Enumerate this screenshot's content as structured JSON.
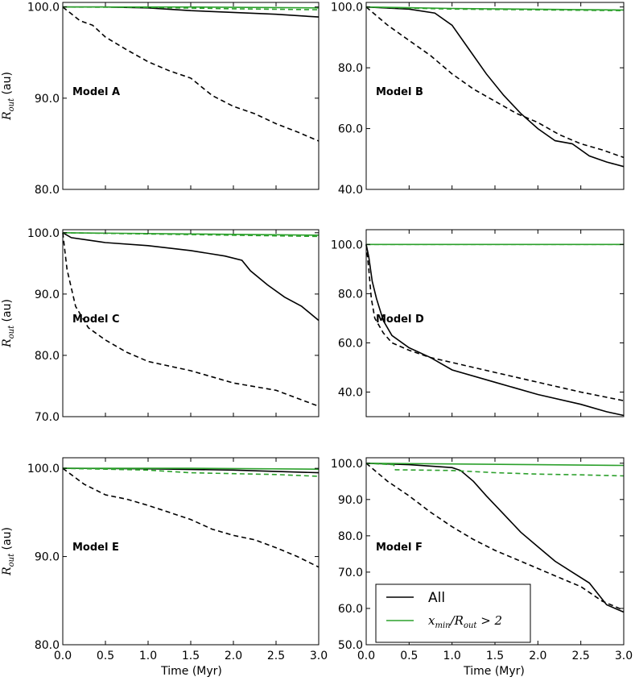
{
  "figure": {
    "xlabel": "Time (Myr)",
    "ylabel_main": "R",
    "ylabel_sub": "out",
    "ylabel_unit": " (au)"
  },
  "legend": {
    "entries": [
      {
        "label": "All",
        "color": "#000000"
      },
      {
        "label_main": "x",
        "label_sub1": "min",
        "label_mid": "/R",
        "label_sub2": "out",
        "label_tail": " > 2",
        "color": "#2ca02c"
      }
    ],
    "placement": "lower-left of Model F panel"
  },
  "colors": {
    "all": "#000000",
    "xmin": "#2ca02c"
  },
  "chart_data": [
    {
      "type": "line",
      "title": "Model A",
      "xlim": [
        0,
        3
      ],
      "ylim": [
        80,
        100.5
      ],
      "xticks": [
        "0.0",
        "0.5",
        "1.0",
        "1.5",
        "2.0",
        "2.5",
        "3.0"
      ],
      "yticks": [
        {
          "v": 80,
          "t": "80.0"
        },
        {
          "v": 90,
          "t": "90.0"
        },
        {
          "v": 100,
          "t": "100.0"
        }
      ],
      "series": [
        {
          "name": "All (solid)",
          "color": "#000000",
          "dash": false,
          "x": [
            0,
            0.5,
            1.0,
            1.5,
            2.0,
            2.5,
            3.0
          ],
          "y": [
            100,
            100,
            99.9,
            99.6,
            99.4,
            99.2,
            98.9
          ]
        },
        {
          "name": "All (dashed)",
          "color": "#000000",
          "dash": true,
          "x": [
            0,
            0.2,
            0.35,
            0.5,
            0.75,
            1.0,
            1.25,
            1.5,
            1.75,
            2.0,
            2.25,
            2.5,
            2.75,
            3.0
          ],
          "y": [
            100,
            98.5,
            98.0,
            96.7,
            95.3,
            94.0,
            93.0,
            92.2,
            90.3,
            89.1,
            88.3,
            87.2,
            86.3,
            85.3
          ]
        },
        {
          "name": "x_min/R_out > 2 (solid)",
          "color": "#2ca02c",
          "dash": false,
          "x": [
            0,
            1.5,
            3.0
          ],
          "y": [
            100,
            100,
            99.9
          ]
        },
        {
          "name": "x_min/R_out > 2 (dashed)",
          "color": "#2ca02c",
          "dash": true,
          "x": [
            0,
            1.0,
            2.0,
            3.0
          ],
          "y": [
            100,
            99.95,
            99.8,
            99.7
          ]
        }
      ]
    },
    {
      "type": "line",
      "title": "Model B",
      "xlim": [
        0,
        3
      ],
      "ylim": [
        40,
        101.5
      ],
      "xticks": [
        "0.0",
        "0.5",
        "1.0",
        "1.5",
        "2.0",
        "2.5",
        "3.0"
      ],
      "yticks": [
        {
          "v": 40,
          "t": "40.0"
        },
        {
          "v": 60,
          "t": "60.0"
        },
        {
          "v": 80,
          "t": "80.0"
        },
        {
          "v": 100,
          "t": "100.0"
        }
      ],
      "series": [
        {
          "name": "All (solid)",
          "color": "#000000",
          "dash": false,
          "x": [
            0,
            0.5,
            0.8,
            1.0,
            1.2,
            1.4,
            1.6,
            1.8,
            2.0,
            2.2,
            2.4,
            2.6,
            2.8,
            3.0
          ],
          "y": [
            100,
            99.3,
            98,
            94,
            86,
            78,
            71,
            65,
            60,
            56,
            55,
            51,
            49,
            47.5
          ]
        },
        {
          "name": "All (dashed)",
          "color": "#000000",
          "dash": true,
          "x": [
            0,
            0.25,
            0.5,
            0.75,
            1.0,
            1.25,
            1.5,
            1.75,
            2.0,
            2.25,
            2.5,
            2.75,
            3.0
          ],
          "y": [
            100,
            94,
            89,
            84,
            78,
            73,
            69,
            65,
            62,
            58,
            55,
            53,
            50.5
          ]
        },
        {
          "name": "x_min/R_out > 2 (solid)",
          "color": "#2ca02c",
          "dash": false,
          "x": [
            0,
            1.0,
            3.0
          ],
          "y": [
            100,
            99.5,
            99.0
          ]
        },
        {
          "name": "x_min/R_out > 2 (dashed)",
          "color": "#2ca02c",
          "dash": true,
          "x": [
            0,
            1.0,
            3.0
          ],
          "y": [
            100,
            99.3,
            98.8
          ]
        }
      ]
    },
    {
      "type": "line",
      "title": "Model C",
      "xlim": [
        0,
        3
      ],
      "ylim": [
        70,
        100.5
      ],
      "xticks": [
        "0.0",
        "0.5",
        "1.0",
        "1.5",
        "2.0",
        "2.5",
        "3.0"
      ],
      "yticks": [
        {
          "v": 70,
          "t": "70.0"
        },
        {
          "v": 80,
          "t": "80.0"
        },
        {
          "v": 90,
          "t": "90.0"
        },
        {
          "v": 100,
          "t": "100.0"
        }
      ],
      "series": [
        {
          "name": "All (solid)",
          "color": "#000000",
          "dash": false,
          "x": [
            0,
            0.1,
            0.3,
            0.5,
            1.0,
            1.5,
            1.9,
            2.1,
            2.2,
            2.4,
            2.6,
            2.8,
            3.0
          ],
          "y": [
            100,
            99.2,
            98.8,
            98.4,
            97.9,
            97.1,
            96.2,
            95.5,
            93.8,
            91.5,
            89.5,
            88.0,
            85.7
          ]
        },
        {
          "name": "All (dashed)",
          "color": "#000000",
          "dash": true,
          "x": [
            0,
            0.05,
            0.15,
            0.3,
            0.5,
            0.75,
            1.0,
            1.5,
            2.0,
            2.5,
            3.0
          ],
          "y": [
            100,
            94,
            88,
            84.5,
            82.5,
            80.5,
            79,
            77.5,
            75.5,
            74.3,
            71.7
          ]
        },
        {
          "name": "x_min/R_out > 2 (solid)",
          "color": "#2ca02c",
          "dash": false,
          "x": [
            0,
            1.5,
            3.0
          ],
          "y": [
            100,
            99.8,
            99.6
          ]
        },
        {
          "name": "x_min/R_out > 2 (dashed)",
          "color": "#2ca02c",
          "dash": true,
          "x": [
            0,
            1.5,
            3.0
          ],
          "y": [
            100,
            99.7,
            99.4
          ]
        }
      ]
    },
    {
      "type": "line",
      "title": "Model D",
      "xlim": [
        0,
        3
      ],
      "ylim": [
        30,
        106
      ],
      "xticks": [
        "0.0",
        "0.5",
        "1.0",
        "1.5",
        "2.0",
        "2.5",
        "3.0"
      ],
      "yticks": [
        {
          "v": 40,
          "t": "40.0"
        },
        {
          "v": 60,
          "t": "60.0"
        },
        {
          "v": 80,
          "t": "80.0"
        },
        {
          "v": 100,
          "t": "100.0"
        }
      ],
      "series": [
        {
          "name": "All (solid)",
          "color": "#000000",
          "dash": false,
          "x": [
            0,
            0.03,
            0.07,
            0.12,
            0.2,
            0.3,
            0.5,
            0.75,
            1.0,
            1.5,
            2.0,
            2.5,
            2.8,
            3.0
          ],
          "y": [
            100,
            95,
            85,
            78,
            69,
            63,
            58,
            54,
            49,
            44,
            39,
            35,
            32,
            30.5
          ]
        },
        {
          "name": "All (dashed)",
          "color": "#000000",
          "dash": true,
          "x": [
            0,
            0.03,
            0.06,
            0.1,
            0.2,
            0.3,
            0.5,
            0.75,
            1.0,
            1.5,
            2.0,
            2.5,
            3.0
          ],
          "y": [
            100,
            90,
            78,
            70,
            64,
            60,
            57,
            54,
            52,
            48,
            44,
            40,
            36.5
          ]
        },
        {
          "name": "x_min/R_out > 2 (solid)",
          "color": "#2ca02c",
          "dash": false,
          "x": [
            0,
            3.0
          ],
          "y": [
            100,
            100
          ]
        },
        {
          "name": "x_min/R_out > 2 (dashed)",
          "color": "#2ca02c",
          "dash": true,
          "x": [
            0,
            3.0
          ],
          "y": [
            100,
            100
          ]
        }
      ]
    },
    {
      "type": "line",
      "title": "Model E",
      "xlim": [
        0,
        3
      ],
      "ylim": [
        80,
        101.2
      ],
      "xticks": [
        "0.0",
        "0.5",
        "1.0",
        "1.5",
        "2.0",
        "2.5",
        "3.0"
      ],
      "yticks": [
        {
          "v": 80,
          "t": "80.0"
        },
        {
          "v": 90,
          "t": "90.0"
        },
        {
          "v": 100,
          "t": "100.0"
        }
      ],
      "series": [
        {
          "name": "All (solid)",
          "color": "#000000",
          "dash": false,
          "x": [
            0,
            1.0,
            2.0,
            3.0
          ],
          "y": [
            100,
            99.95,
            99.8,
            99.5
          ]
        },
        {
          "name": "All (dashed)",
          "color": "#000000",
          "dash": true,
          "x": [
            0,
            0.25,
            0.5,
            0.75,
            1.0,
            1.25,
            1.5,
            1.75,
            2.0,
            2.25,
            2.5,
            2.75,
            3.0
          ],
          "y": [
            100,
            98.2,
            97.0,
            96.5,
            95.8,
            95.0,
            94.2,
            93.1,
            92.4,
            91.9,
            91.0,
            90.0,
            88.8
          ]
        },
        {
          "name": "x_min/R_out > 2 (solid)",
          "color": "#2ca02c",
          "dash": false,
          "x": [
            0,
            1.5,
            3.0
          ],
          "y": [
            100,
            100,
            99.9
          ]
        },
        {
          "name": "x_min/R_out > 2 (dashed)",
          "color": "#2ca02c",
          "dash": true,
          "x": [
            0,
            0.5,
            1.0,
            1.5,
            2.0,
            2.5,
            3.0
          ],
          "y": [
            100,
            99.9,
            99.8,
            99.5,
            99.4,
            99.3,
            99.1
          ]
        }
      ]
    },
    {
      "type": "line",
      "title": "Model F",
      "xlim": [
        0,
        3
      ],
      "ylim": [
        50,
        101.5
      ],
      "xticks": [
        "0.0",
        "0.5",
        "1.0",
        "1.5",
        "2.0",
        "2.5",
        "3.0"
      ],
      "yticks": [
        {
          "v": 50,
          "t": "50.0"
        },
        {
          "v": 60,
          "t": "60.0"
        },
        {
          "v": 70,
          "t": "70.0"
        },
        {
          "v": 80,
          "t": "80.0"
        },
        {
          "v": 90,
          "t": "90.0"
        },
        {
          "v": 100,
          "t": "100.0"
        }
      ],
      "series": [
        {
          "name": "All (solid)",
          "color": "#000000",
          "dash": false,
          "x": [
            0,
            0.5,
            1.0,
            1.1,
            1.25,
            1.4,
            1.6,
            1.8,
            2.0,
            2.2,
            2.4,
            2.6,
            2.8,
            3.0
          ],
          "y": [
            100,
            99.6,
            98.8,
            98,
            95,
            91,
            86,
            81,
            77,
            73,
            70,
            67,
            61,
            59
          ]
        },
        {
          "name": "All (dashed)",
          "color": "#000000",
          "dash": true,
          "x": [
            0,
            0.25,
            0.5,
            0.75,
            1.0,
            1.25,
            1.5,
            1.75,
            2.0,
            2.25,
            2.5,
            2.75,
            3.0
          ],
          "y": [
            100,
            95,
            91,
            86.5,
            82.5,
            79,
            76,
            73.5,
            71,
            68.5,
            66,
            62,
            59.5
          ]
        },
        {
          "name": "x_min/R_out > 2 (solid)",
          "color": "#2ca02c",
          "dash": false,
          "x": [
            0,
            1.0,
            2.0,
            3.0
          ],
          "y": [
            100,
            99.8,
            99.6,
            99.4
          ]
        },
        {
          "name": "x_min/R_out > 2 (dashed)",
          "color": "#2ca02c",
          "dash": true,
          "x": [
            0,
            0.32,
            0.34,
            1.0,
            1.5,
            2.0,
            2.5,
            3.0
          ],
          "y": [
            100,
            99.6,
            98.2,
            98.0,
            97.4,
            97.0,
            96.8,
            96.5
          ]
        }
      ]
    }
  ]
}
